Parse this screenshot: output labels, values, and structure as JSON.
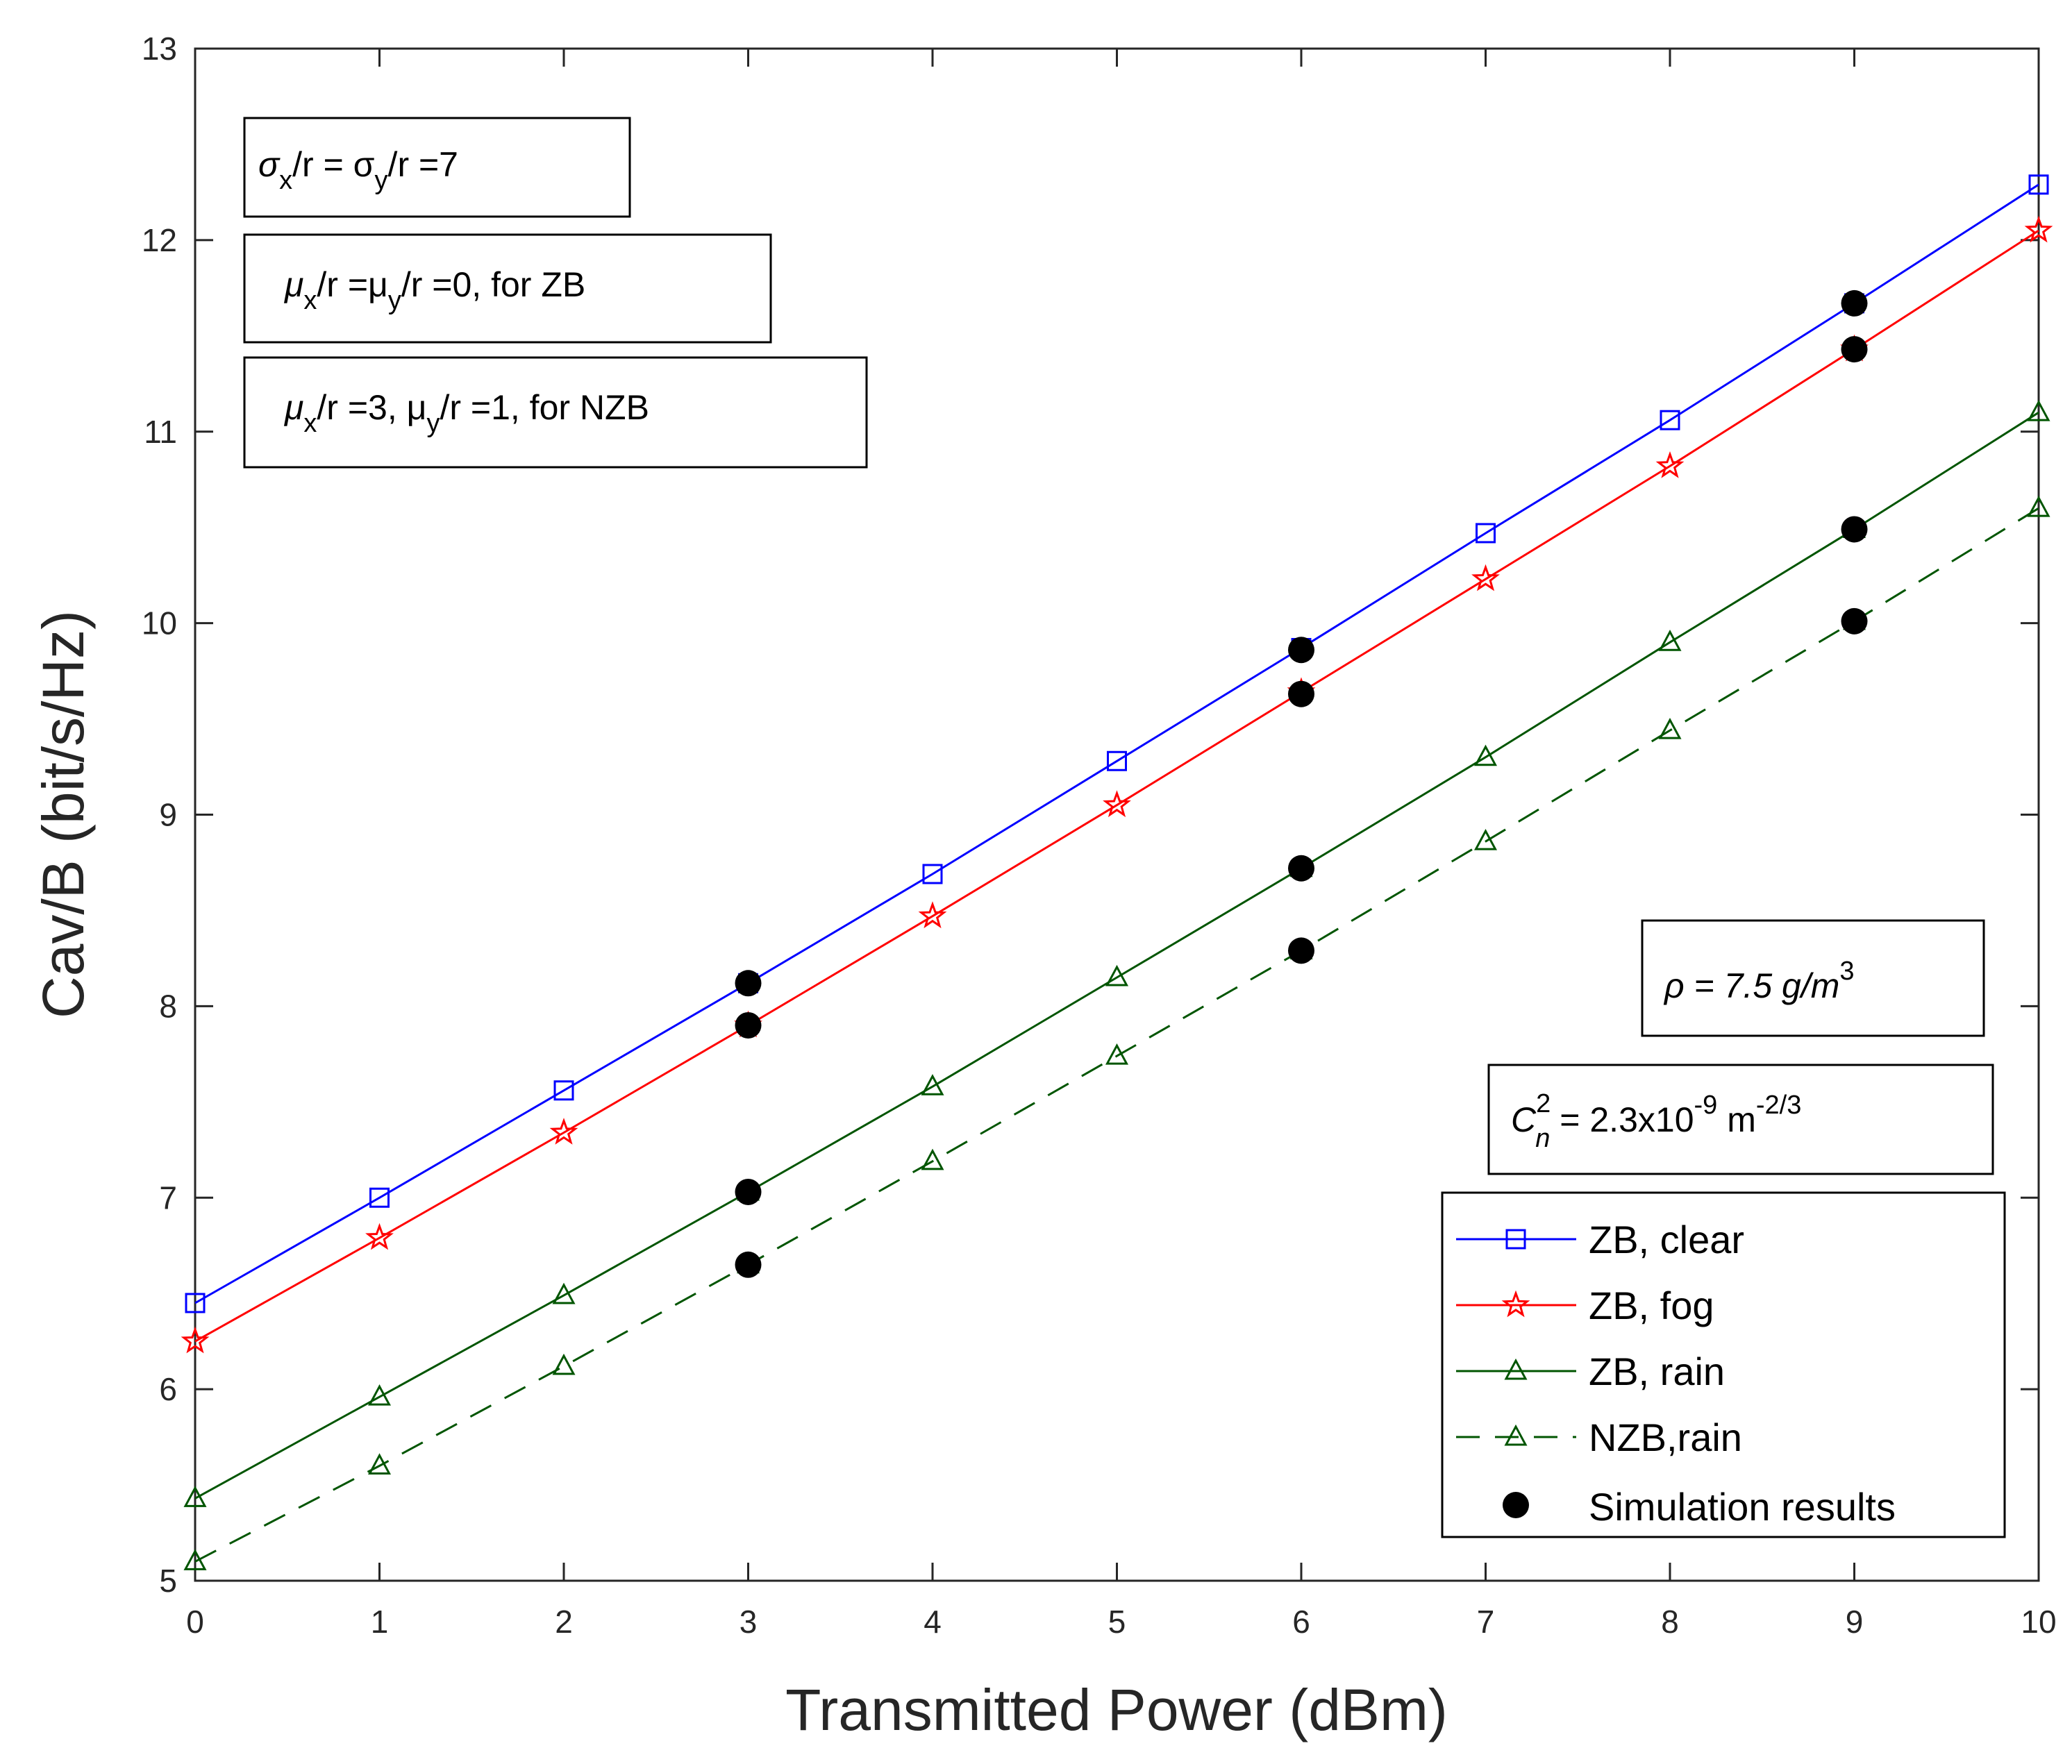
{
  "chart_data": {
    "type": "line",
    "xlabel": "Transmitted Power (dBm)",
    "ylabel": "Cav/B (bit/s/Hz)",
    "xlim": [
      0,
      10
    ],
    "ylim": [
      5,
      13
    ],
    "xticks": [
      "0",
      "1",
      "2",
      "3",
      "4",
      "5",
      "6",
      "7",
      "8",
      "9",
      "10"
    ],
    "yticks": [
      "5",
      "6",
      "7",
      "8",
      "9",
      "10",
      "11",
      "12",
      "13"
    ],
    "x": [
      0,
      1,
      2,
      3,
      4,
      5,
      6,
      7,
      8,
      9,
      10
    ],
    "series": [
      {
        "name": "ZB, clear",
        "color": "#0000ff",
        "marker": "square",
        "dash": "solid",
        "values": [
          6.45,
          7.0,
          7.56,
          8.12,
          8.69,
          9.28,
          9.87,
          10.47,
          11.06,
          11.67,
          12.29
        ]
      },
      {
        "name": "ZB, fog",
        "color": "#ff0000",
        "marker": "star",
        "dash": "solid",
        "values": [
          6.25,
          6.79,
          7.34,
          7.9,
          8.47,
          9.05,
          9.64,
          10.23,
          10.82,
          11.43,
          12.05
        ]
      },
      {
        "name": "ZB, rain",
        "color": "#005500",
        "marker": "triangle",
        "dash": "solid",
        "values": [
          5.43,
          5.96,
          6.49,
          7.03,
          7.58,
          8.15,
          8.72,
          9.3,
          9.9,
          10.49,
          11.1
        ]
      },
      {
        "name": "NZB,rain",
        "color": "#005500",
        "marker": "triangle",
        "dash": "dashed",
        "values": [
          5.1,
          5.6,
          6.12,
          6.65,
          7.19,
          7.74,
          8.29,
          8.86,
          9.44,
          10.01,
          10.6
        ]
      }
    ],
    "simulation": {
      "name": "Simulation results",
      "color": "#000000",
      "points": [
        {
          "x": 3,
          "y": 8.12
        },
        {
          "x": 3,
          "y": 7.9
        },
        {
          "x": 3,
          "y": 7.03
        },
        {
          "x": 3,
          "y": 6.65
        },
        {
          "x": 6,
          "y": 9.86
        },
        {
          "x": 6,
          "y": 9.63
        },
        {
          "x": 6,
          "y": 8.72
        },
        {
          "x": 6,
          "y": 8.29
        },
        {
          "x": 9,
          "y": 11.67
        },
        {
          "x": 9,
          "y": 11.43
        },
        {
          "x": 9,
          "y": 10.49
        },
        {
          "x": 9,
          "y": 10.01
        }
      ]
    },
    "annotations": {
      "sigma": {
        "text_a": "σ",
        "sub_a": "x",
        "text_b": "/r = σ",
        "sub_b": "y",
        "text_c": "/r =7"
      },
      "mu_zb": {
        "text_a": "μ",
        "sub_a": "x",
        "text_b": "/r =μ",
        "sub_b": "y",
        "text_c": "/r =0, for ZB"
      },
      "mu_nzb": {
        "text_a": "μ",
        "sub_a": "x",
        "text_b": "/r =3, μ",
        "sub_b": "y",
        "text_c": "/r =1, for NZB"
      },
      "rho": {
        "text_a": "ρ = 7.5 g/m",
        "sup": "3"
      },
      "cn2": {
        "text_a": "C",
        "sup_a": "2",
        "sub_a": "n",
        "text_b": " = 2.3x10",
        "sup_b": "-9",
        "text_c": " m",
        "sup_c": "-2/3"
      }
    },
    "legend": {
      "position": "bottom-right"
    }
  }
}
